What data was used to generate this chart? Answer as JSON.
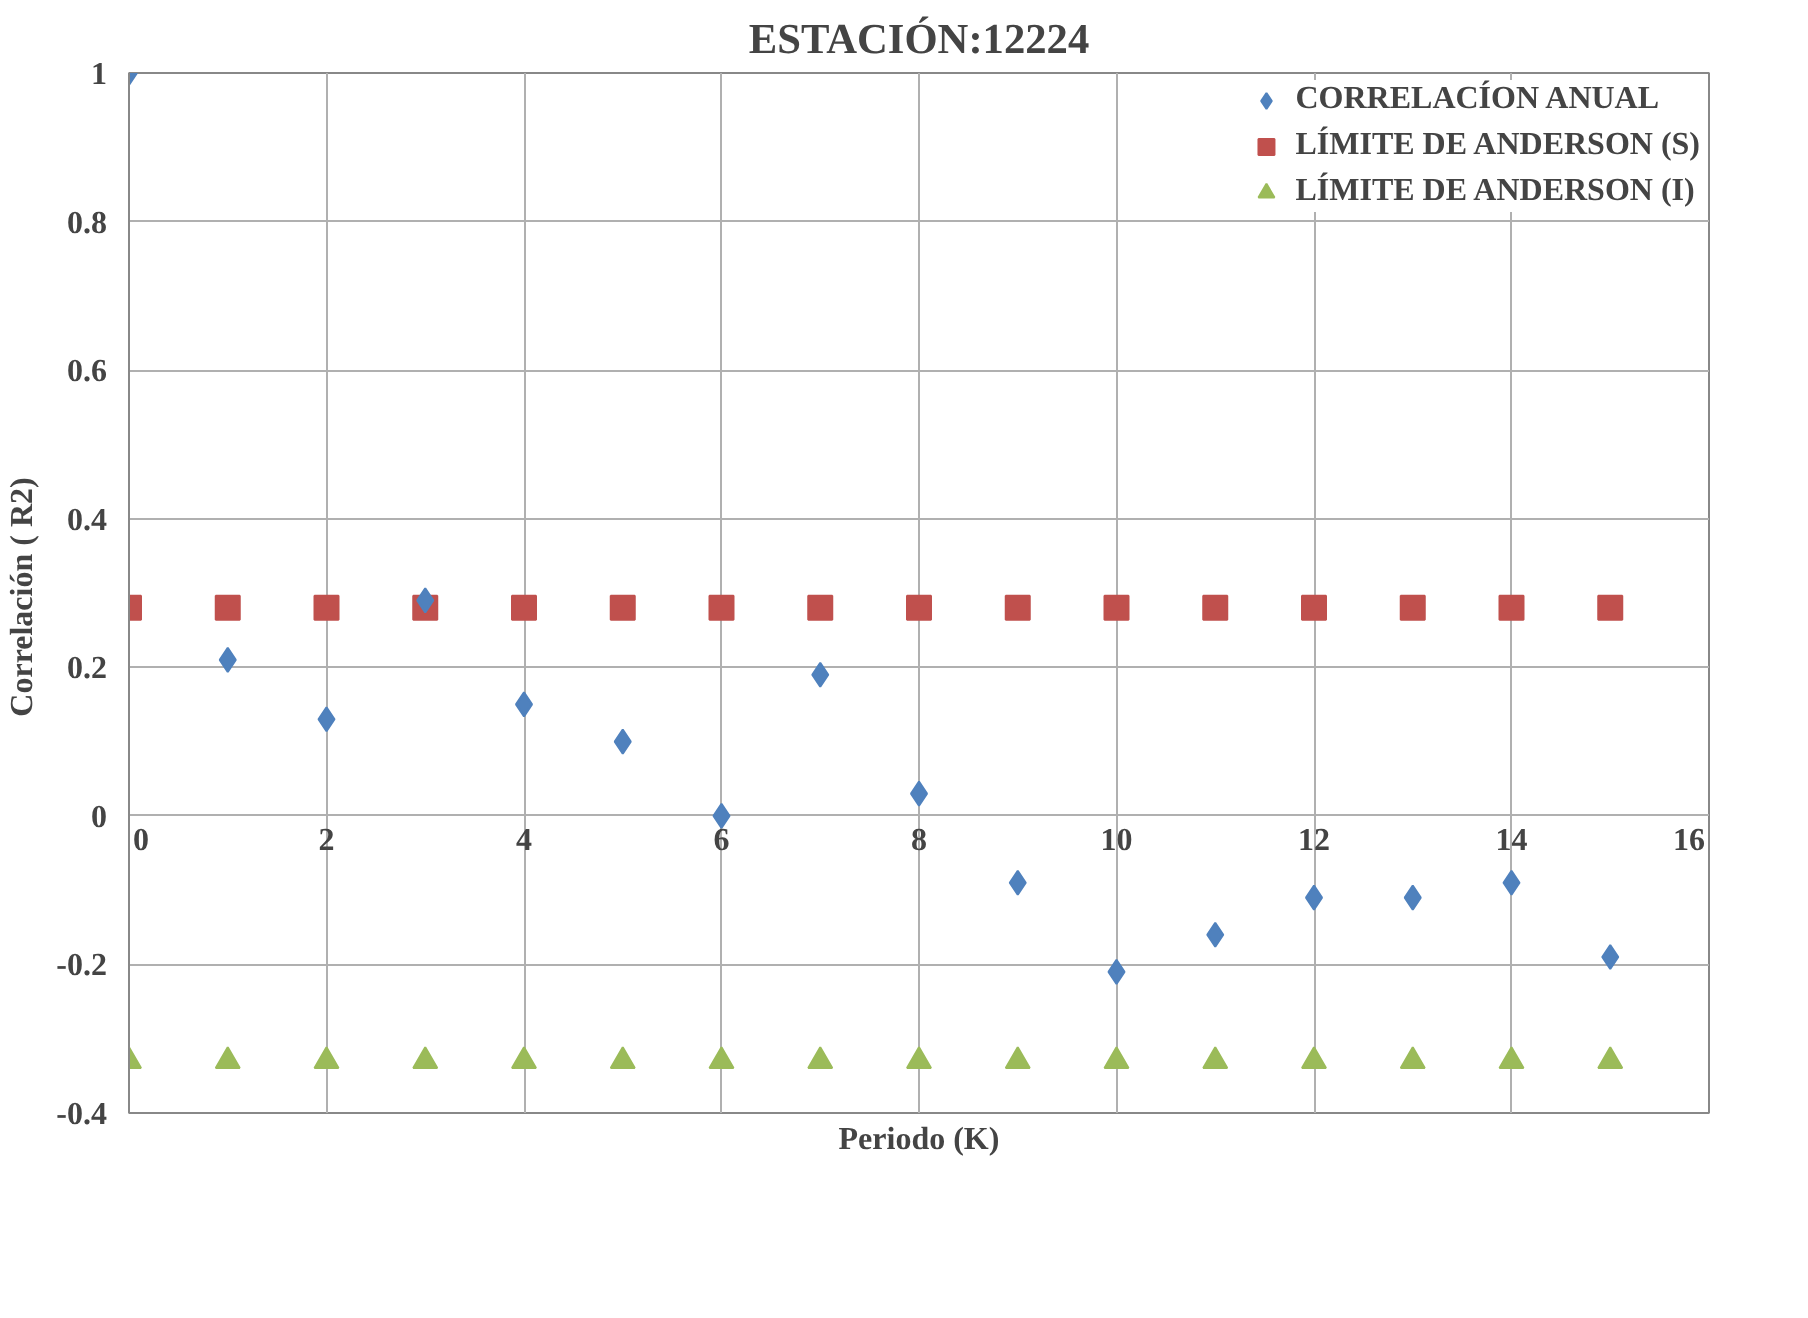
{
  "chart_data": {
    "type": "scatter",
    "title": "ESTACIÓN:12224",
    "xlabel": "Periodo (K)",
    "ylabel": "Correlación  ( R2)",
    "x": [
      0,
      1,
      2,
      3,
      4,
      5,
      6,
      7,
      8,
      9,
      10,
      11,
      12,
      13,
      14,
      15
    ],
    "series": [
      {
        "name": "CORRELACÍON ANUAL",
        "color": "#4f81bd",
        "marker": "diamond",
        "values": [
          1,
          0.21,
          0.13,
          0.29,
          0.15,
          0.1,
          0,
          0.19,
          0.03,
          -0.09,
          -0.21,
          -0.16,
          -0.11,
          -0.11,
          -0.09,
          -0.19
        ]
      },
      {
        "name": "LÍMITE DE ANDERSON (S)",
        "color": "#c0504d",
        "marker": "square",
        "values": [
          0.28,
          0.28,
          0.28,
          0.28,
          0.28,
          0.28,
          0.28,
          0.28,
          0.28,
          0.28,
          0.28,
          0.28,
          0.28,
          0.28,
          0.28,
          0.28
        ]
      },
      {
        "name": "LÍMITE DE ANDERSON (I)",
        "color": "#9bbb59",
        "marker": "triangle",
        "values": [
          -0.33,
          -0.33,
          -0.33,
          -0.33,
          -0.33,
          -0.33,
          -0.33,
          -0.33,
          -0.33,
          -0.33,
          -0.33,
          -0.33,
          -0.33,
          -0.33,
          -0.33,
          -0.33
        ]
      }
    ],
    "xlim": [
      0,
      16
    ],
    "xticks": [
      0,
      2,
      4,
      6,
      8,
      10,
      12,
      14,
      16
    ],
    "ylim": [
      -0.4,
      1
    ],
    "yticks": [
      -0.4,
      -0.2,
      0,
      0.2,
      0.4,
      0.6,
      0.8,
      1
    ],
    "grid": true,
    "legend": "top right"
  }
}
